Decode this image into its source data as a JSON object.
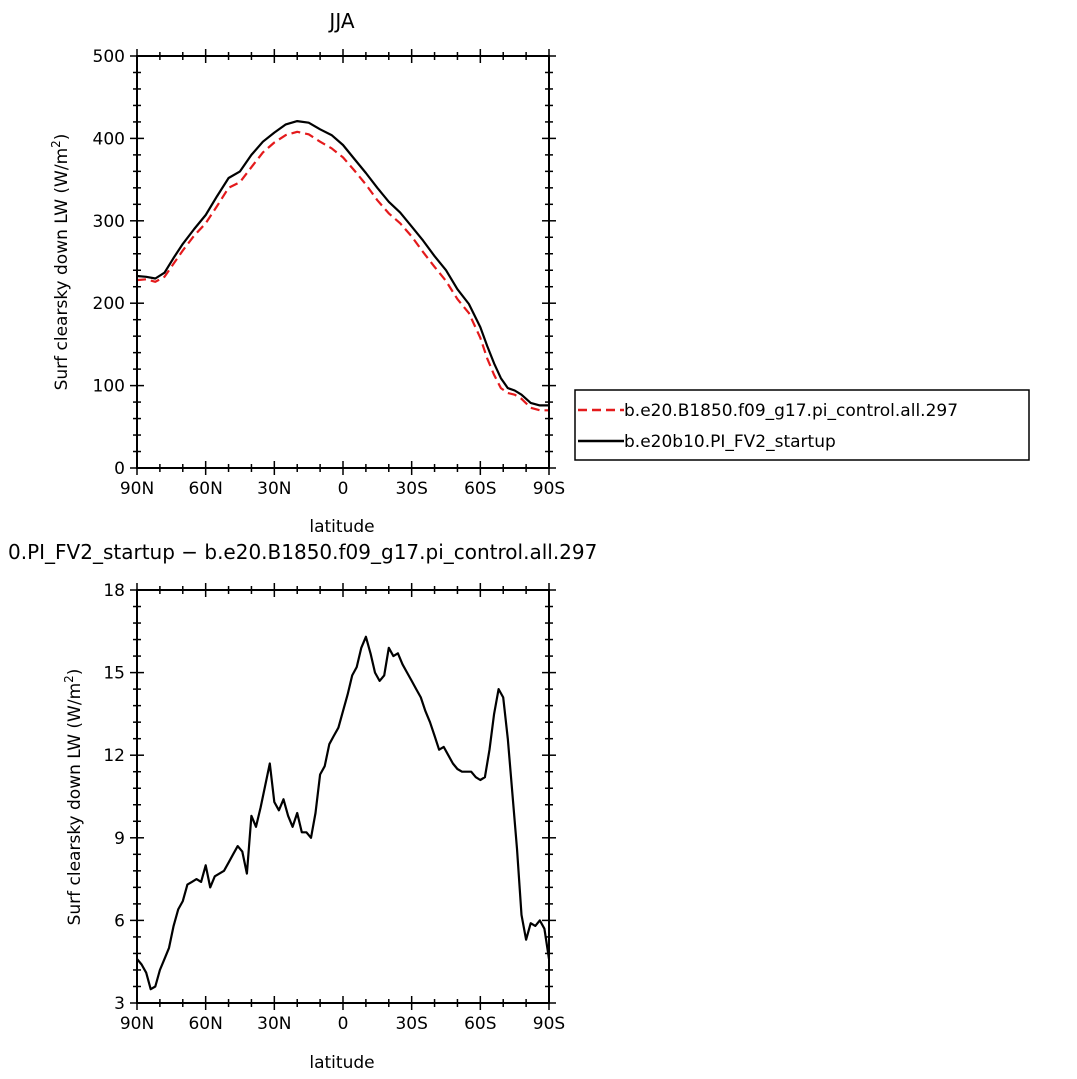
{
  "chart_data": [
    {
      "type": "line",
      "title": "JJA",
      "xlabel": "latitude",
      "ylabel": "Surf clearsky down LW (W/m²)",
      "xlim": [
        -90,
        90
      ],
      "ylim": [
        0,
        500
      ],
      "xticks": [
        "90N",
        "60N",
        "30N",
        "0",
        "30S",
        "60S",
        "90S"
      ],
      "yticks": [
        "0",
        "100",
        "200",
        "300",
        "400",
        "500"
      ],
      "legend_position": "right",
      "series": [
        {
          "name": "b.e20.B1850.f09_g17.pi_control.all.297",
          "color": "#e41a1c",
          "style": "dashed",
          "x": [
            -90,
            -86,
            -82,
            -78,
            -74,
            -70,
            -65,
            -60,
            -55,
            -50,
            -45,
            -40,
            -35,
            -30,
            -25,
            -20,
            -15,
            -10,
            -5,
            0,
            5,
            10,
            15,
            20,
            25,
            30,
            35,
            40,
            45,
            50,
            55,
            60,
            63,
            66,
            69,
            72,
            75,
            78,
            82,
            86,
            90
          ],
          "y": [
            228,
            229,
            226,
            232,
            248,
            264,
            282,
            297,
            318,
            340,
            347,
            365,
            383,
            395,
            404,
            408,
            405,
            396,
            388,
            377,
            361,
            344,
            325,
            309,
            297,
            281,
            262,
            244,
            227,
            205,
            188,
            158,
            133,
            113,
            97,
            91,
            89,
            84,
            73,
            70,
            70
          ]
        },
        {
          "name": "b.e20b10.PI_FV2_startup",
          "color": "#000000",
          "style": "solid",
          "x": [
            -90,
            -86,
            -82,
            -78,
            -74,
            -70,
            -65,
            -60,
            -55,
            -50,
            -45,
            -40,
            -35,
            -30,
            -25,
            -20,
            -15,
            -10,
            -5,
            0,
            5,
            10,
            15,
            20,
            25,
            30,
            35,
            40,
            45,
            50,
            55,
            60,
            63,
            66,
            69,
            72,
            75,
            78,
            82,
            86,
            90
          ],
          "y": [
            233,
            232,
            230,
            237,
            255,
            272,
            290,
            307,
            330,
            352,
            360,
            380,
            396,
            407,
            417,
            421,
            419,
            411,
            404,
            392,
            375,
            358,
            340,
            323,
            310,
            293,
            276,
            257,
            240,
            217,
            199,
            171,
            148,
            127,
            109,
            97,
            94,
            89,
            79,
            76,
            76
          ]
        }
      ]
    },
    {
      "type": "line",
      "title": "0.PI_FV2_startup − b.e20.B1850.f09_g17.pi_control.all.297",
      "xlabel": "latitude",
      "ylabel": "Surf clearsky down LW (W/m²)",
      "xlim": [
        -90,
        90
      ],
      "ylim": [
        3,
        18
      ],
      "xticks": [
        "90N",
        "60N",
        "30N",
        "0",
        "30S",
        "60S",
        "90S"
      ],
      "yticks": [
        "3",
        "6",
        "9",
        "12",
        "15",
        "18"
      ],
      "series": [
        {
          "color": "#000000",
          "style": "solid",
          "x": [
            -90,
            -88,
            -86,
            -84,
            -82,
            -80,
            -78,
            -76,
            -74,
            -72,
            -70,
            -68,
            -66,
            -64,
            -62,
            -60,
            -58,
            -56,
            -54,
            -52,
            -50,
            -48,
            -46,
            -44,
            -42,
            -40,
            -38,
            -36,
            -34,
            -32,
            -30,
            -28,
            -26,
            -24,
            -22,
            -20,
            -18,
            -16,
            -14,
            -12,
            -10,
            -8,
            -6,
            -4,
            -2,
            0,
            2,
            4,
            6,
            8,
            10,
            12,
            14,
            16,
            18,
            20,
            22,
            24,
            26,
            28,
            30,
            32,
            34,
            36,
            38,
            40,
            42,
            44,
            46,
            48,
            50,
            52,
            54,
            56,
            58,
            60,
            62,
            64,
            66,
            68,
            70,
            72,
            74,
            76,
            78,
            80,
            82,
            84,
            86,
            88,
            90
          ],
          "y": [
            4.6,
            4.4,
            4.1,
            3.5,
            3.6,
            4.2,
            4.6,
            5.0,
            5.8,
            6.4,
            6.7,
            7.3,
            7.4,
            7.5,
            7.4,
            8.0,
            7.2,
            7.6,
            7.7,
            7.8,
            8.1,
            8.4,
            8.7,
            8.5,
            7.7,
            9.8,
            9.4,
            10.1,
            10.9,
            11.7,
            10.3,
            10.0,
            10.4,
            9.8,
            9.4,
            9.9,
            9.2,
            9.2,
            9.0,
            9.9,
            11.3,
            11.6,
            12.4,
            12.7,
            13.0,
            13.6,
            14.2,
            14.9,
            15.2,
            15.9,
            16.3,
            15.7,
            15.0,
            14.7,
            14.9,
            15.9,
            15.6,
            15.7,
            15.3,
            15.0,
            14.7,
            14.4,
            14.1,
            13.6,
            13.2,
            12.7,
            12.2,
            12.3,
            12.0,
            11.7,
            11.5,
            11.4,
            11.4,
            11.4,
            11.2,
            11.1,
            11.2,
            12.2,
            13.5,
            14.4,
            14.1,
            12.6,
            10.6,
            8.6,
            6.2,
            5.3,
            5.9,
            5.8,
            6.0,
            5.7,
            4.6
          ]
        }
      ]
    }
  ]
}
